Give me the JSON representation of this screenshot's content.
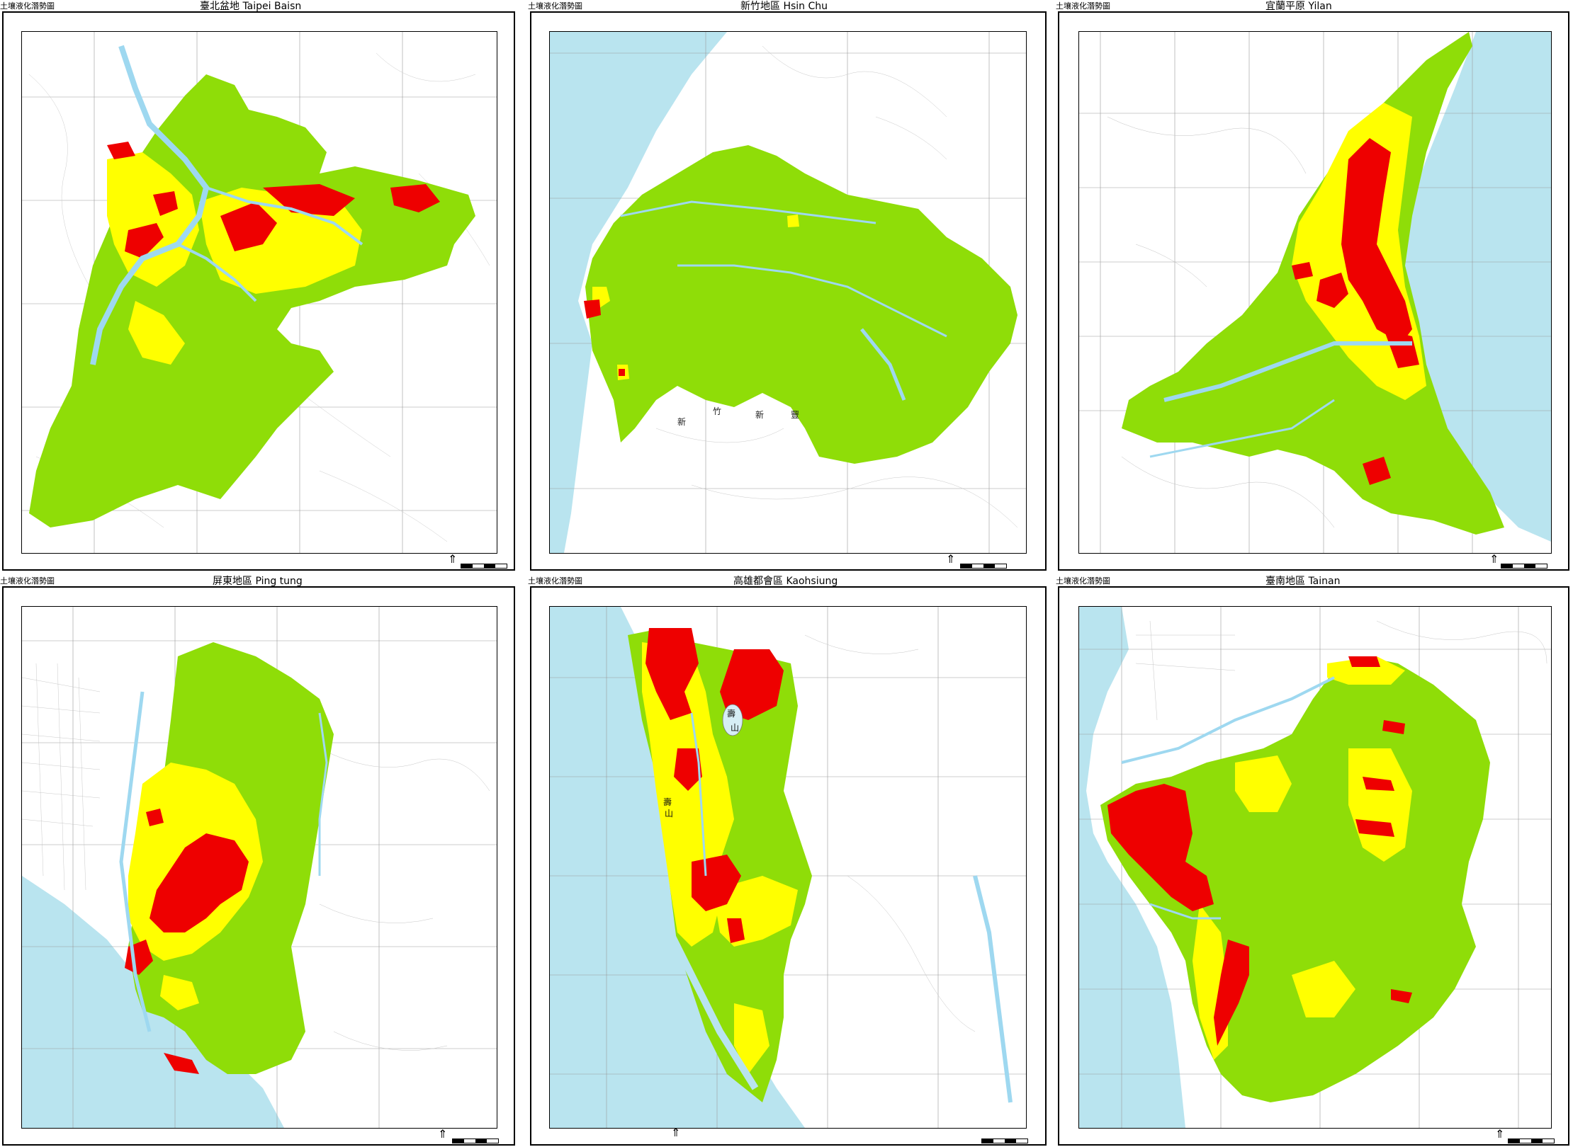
{
  "header_label": "土壤液化潛勢圖",
  "colors": {
    "sea": "#b9e4ef",
    "low": "#8fdd08",
    "medium": "#ffff00",
    "high": "#ee0000",
    "land": "#ffffff",
    "river": "#9ed8f0"
  },
  "panels": [
    {
      "id": "taipei",
      "title": "臺北盆地 Taipei Baisn"
    },
    {
      "id": "hsinchu",
      "title": "新竹地區 Hsin Chu"
    },
    {
      "id": "yilan",
      "title": "宜蘭平原 Yilan"
    },
    {
      "id": "pingtung",
      "title": "屏東地區 Ping tung"
    },
    {
      "id": "kaohsiung",
      "title": "高雄都會區 Kaohsiung"
    },
    {
      "id": "tainan",
      "title": "臺南地區 Tainan"
    }
  ],
  "map_labels": {
    "hsinchu": [
      "新",
      "竹",
      "新",
      "豐",
      "新",
      "豐"
    ],
    "kaohsiung": [
      "壽",
      "山",
      "壽",
      "山"
    ]
  }
}
